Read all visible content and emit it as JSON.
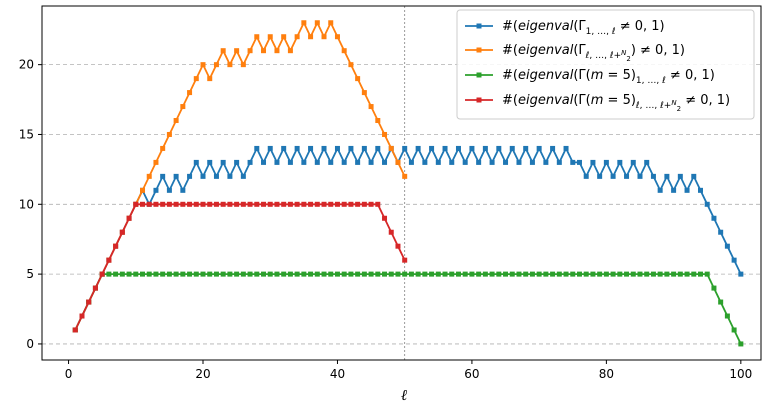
{
  "chart_data": {
    "type": "line",
    "xlabel": "ℓ",
    "ylabel": "",
    "xlim": [
      -3.95,
      103.0
    ],
    "ylim": [
      -1.15,
      24.2
    ],
    "xticks": [
      0,
      20,
      40,
      60,
      80,
      100
    ],
    "yticks": [
      0,
      5,
      10,
      15,
      20
    ],
    "grid": "y-dashed",
    "vline_x": 50,
    "legend_position": "top-right",
    "series": [
      {
        "name": "#(eigenval(Γ_{1,…,ℓ} ≠ 0, 1)",
        "color": "#1f77b4",
        "x": [
          1,
          2,
          3,
          4,
          5,
          6,
          7,
          8,
          9,
          10,
          11,
          12,
          13,
          14,
          15,
          16,
          17,
          18,
          19,
          20,
          21,
          22,
          23,
          24,
          25,
          26,
          27,
          28,
          29,
          30,
          31,
          32,
          33,
          34,
          35,
          36,
          37,
          38,
          39,
          40,
          41,
          42,
          43,
          44,
          45,
          46,
          47,
          48,
          49,
          50,
          51,
          52,
          53,
          54,
          55,
          56,
          57,
          58,
          59,
          60,
          61,
          62,
          63,
          64,
          65,
          66,
          67,
          68,
          69,
          70,
          71,
          72,
          73,
          74,
          75,
          76,
          77,
          78,
          79,
          80,
          81,
          82,
          83,
          84,
          85,
          86,
          87,
          88,
          89,
          90,
          91,
          92,
          93,
          94,
          95,
          96,
          97,
          98,
          99,
          100
        ],
        "values": [
          1,
          2,
          3,
          4,
          5,
          6,
          7,
          8,
          9,
          10,
          11,
          10,
          11,
          12,
          11,
          12,
          11,
          12,
          13,
          12,
          13,
          12,
          13,
          12,
          13,
          12,
          13,
          14,
          13,
          14,
          13,
          14,
          13,
          14,
          13,
          14,
          13,
          14,
          13,
          14,
          13,
          14,
          13,
          14,
          13,
          14,
          13,
          14,
          13,
          14,
          13,
          14,
          13,
          14,
          13,
          14,
          13,
          14,
          13,
          14,
          13,
          14,
          13,
          14,
          13,
          14,
          13,
          14,
          13,
          14,
          13,
          14,
          13,
          14,
          13,
          13,
          12,
          13,
          12,
          13,
          12,
          13,
          12,
          13,
          12,
          13,
          12,
          11,
          12,
          11,
          12,
          11,
          12,
          11,
          10,
          9,
          8,
          7,
          6,
          5
        ]
      },
      {
        "name": "#(eigenval(Γ_{ℓ,…,ℓ+N/2}) ≠ 0, 1)",
        "color": "#ff7f0e",
        "x": [
          1,
          2,
          3,
          4,
          5,
          6,
          7,
          8,
          9,
          10,
          11,
          12,
          13,
          14,
          15,
          16,
          17,
          18,
          19,
          20,
          21,
          22,
          23,
          24,
          25,
          26,
          27,
          28,
          29,
          30,
          31,
          32,
          33,
          34,
          35,
          36,
          37,
          38,
          39,
          40,
          41,
          42,
          43,
          44,
          45,
          46,
          47,
          48,
          49,
          50
        ],
        "values": [
          1,
          2,
          3,
          4,
          5,
          6,
          7,
          8,
          9,
          10,
          11,
          12,
          13,
          14,
          15,
          16,
          17,
          18,
          19,
          20,
          19,
          20,
          21,
          20,
          21,
          20,
          21,
          22,
          21,
          22,
          21,
          22,
          21,
          22,
          23,
          22,
          23,
          22,
          23,
          22,
          21,
          20,
          19,
          18,
          17,
          16,
          15,
          14,
          13,
          12
        ]
      },
      {
        "name": "#(eigenval(Γ(m = 5)_{1,…,ℓ} ≠ 0, 1)",
        "color": "#2ca02c",
        "x": [
          1,
          2,
          3,
          4,
          5,
          6,
          7,
          8,
          9,
          10,
          11,
          12,
          13,
          14,
          15,
          16,
          17,
          18,
          19,
          20,
          21,
          22,
          23,
          24,
          25,
          26,
          27,
          28,
          29,
          30,
          31,
          32,
          33,
          34,
          35,
          36,
          37,
          38,
          39,
          40,
          41,
          42,
          43,
          44,
          45,
          46,
          47,
          48,
          49,
          50,
          51,
          52,
          53,
          54,
          55,
          56,
          57,
          58,
          59,
          60,
          61,
          62,
          63,
          64,
          65,
          66,
          67,
          68,
          69,
          70,
          71,
          72,
          73,
          74,
          75,
          76,
          77,
          78,
          79,
          80,
          81,
          82,
          83,
          84,
          85,
          86,
          87,
          88,
          89,
          90,
          91,
          92,
          93,
          94,
          95,
          96,
          97,
          98,
          99,
          100
        ],
        "values": [
          1,
          2,
          3,
          4,
          5,
          5,
          5,
          5,
          5,
          5,
          5,
          5,
          5,
          5,
          5,
          5,
          5,
          5,
          5,
          5,
          5,
          5,
          5,
          5,
          5,
          5,
          5,
          5,
          5,
          5,
          5,
          5,
          5,
          5,
          5,
          5,
          5,
          5,
          5,
          5,
          5,
          5,
          5,
          5,
          5,
          5,
          5,
          5,
          5,
          5,
          5,
          5,
          5,
          5,
          5,
          5,
          5,
          5,
          5,
          5,
          5,
          5,
          5,
          5,
          5,
          5,
          5,
          5,
          5,
          5,
          5,
          5,
          5,
          5,
          5,
          5,
          5,
          5,
          5,
          5,
          5,
          5,
          5,
          5,
          5,
          5,
          5,
          5,
          5,
          5,
          5,
          5,
          5,
          5,
          5,
          4,
          3,
          2,
          1,
          0
        ]
      },
      {
        "name": "#(eigenval(Γ(m = 5)_{ℓ,…,ℓ+N/2} ≠ 0, 1)",
        "color": "#d62728",
        "x": [
          1,
          2,
          3,
          4,
          5,
          6,
          7,
          8,
          9,
          10,
          11,
          12,
          13,
          14,
          15,
          16,
          17,
          18,
          19,
          20,
          21,
          22,
          23,
          24,
          25,
          26,
          27,
          28,
          29,
          30,
          31,
          32,
          33,
          34,
          35,
          36,
          37,
          38,
          39,
          40,
          41,
          42,
          43,
          44,
          45,
          46,
          47,
          48,
          49,
          50
        ],
        "values": [
          1,
          2,
          3,
          4,
          5,
          6,
          7,
          8,
          9,
          10,
          10,
          10,
          10,
          10,
          10,
          10,
          10,
          10,
          10,
          10,
          10,
          10,
          10,
          10,
          10,
          10,
          10,
          10,
          10,
          10,
          10,
          10,
          10,
          10,
          10,
          10,
          10,
          10,
          10,
          10,
          10,
          10,
          10,
          10,
          10,
          10,
          9,
          8,
          7,
          6
        ]
      }
    ]
  }
}
